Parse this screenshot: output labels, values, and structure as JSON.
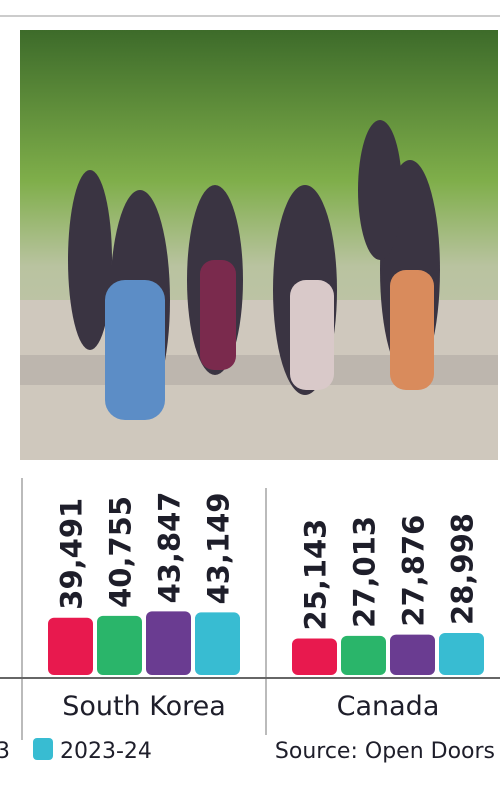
{
  "chart_data": {
    "type": "bar",
    "categories": [
      "South Korea",
      "Canada"
    ],
    "series": [
      {
        "color": "#e8194e",
        "values": [
          39491,
          25143
        ],
        "value_labels": [
          "39,491",
          "25,143"
        ]
      },
      {
        "color": "#2ab56a",
        "values": [
          40755,
          27013
        ],
        "value_labels": [
          "40,755",
          "27,013"
        ]
      },
      {
        "color": "#6a3c91",
        "values": [
          43847,
          27876
        ],
        "value_labels": [
          "43,847",
          "27,876"
        ]
      },
      {
        "name": "2023-24",
        "color": "#38bcd2",
        "values": [
          43149,
          28998
        ],
        "value_labels": [
          "43,149",
          "28,998"
        ]
      }
    ],
    "legend_fragment": "3",
    "source": "Source: Open Doors"
  }
}
